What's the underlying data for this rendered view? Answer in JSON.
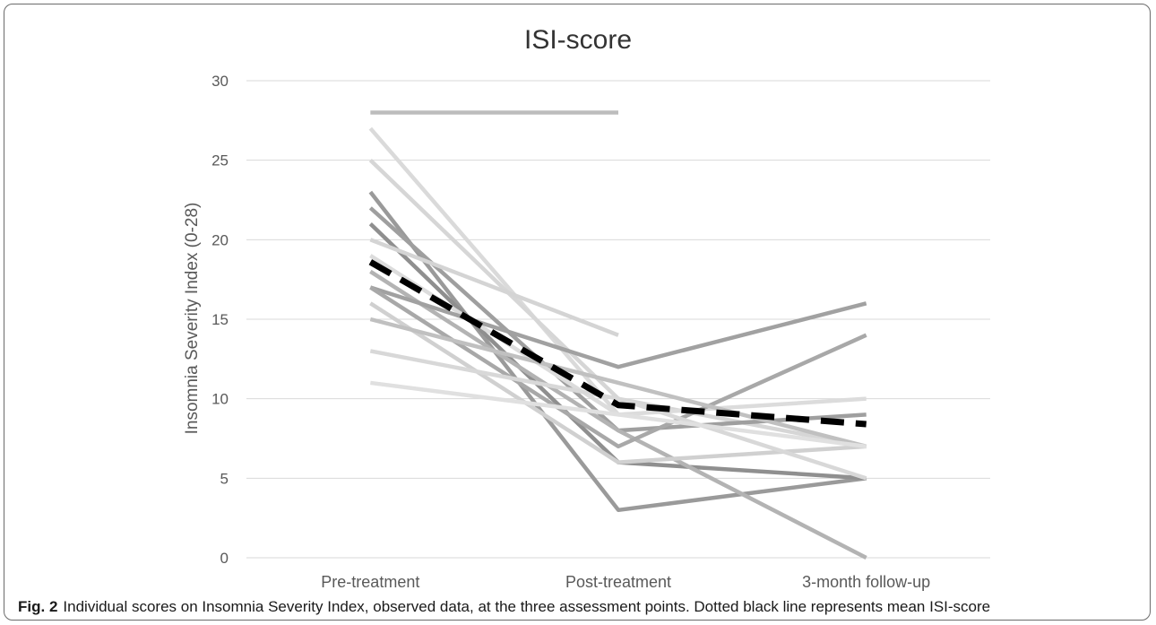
{
  "caption": {
    "label": "Fig. 2",
    "text": "Individual scores on Insomnia Severity Index, observed data, at the three assessment points. Dotted black line represents mean ISI-score"
  },
  "chart_data": {
    "type": "line",
    "title": "ISI-score",
    "xlabel": "",
    "ylabel": "Insomnia Severity  Index (0-28)",
    "categories": [
      "Pre-treatment",
      "Post-treatment",
      "3-month follow-up"
    ],
    "ylim": [
      0,
      30
    ],
    "yticks": [
      0,
      5,
      10,
      15,
      20,
      25,
      30
    ],
    "grid": true,
    "legend": "none",
    "series": [
      {
        "values": [
          28,
          28,
          null
        ],
        "color": "#bdbdbd"
      },
      {
        "values": [
          27,
          9,
          null
        ],
        "color": "#dadada"
      },
      {
        "values": [
          25,
          10,
          7
        ],
        "color": "#d6d6d6"
      },
      {
        "values": [
          23,
          3,
          5
        ],
        "color": "#9a9a9a"
      },
      {
        "values": [
          22,
          8,
          9
        ],
        "color": "#9f9f9f"
      },
      {
        "values": [
          21,
          6,
          5
        ],
        "color": "#8f8f8f"
      },
      {
        "values": [
          20,
          14,
          null
        ],
        "color": "#d4d4d4"
      },
      {
        "values": [
          19,
          9,
          10
        ],
        "color": "#dcdcdc"
      },
      {
        "values": [
          18,
          8,
          0
        ],
        "color": "#b3b3b3"
      },
      {
        "values": [
          17,
          12,
          16
        ],
        "color": "#a1a1a1"
      },
      {
        "values": [
          17,
          7,
          14
        ],
        "color": "#a8a8a8"
      },
      {
        "values": [
          16,
          6,
          7
        ],
        "color": "#d0d0d0"
      },
      {
        "values": [
          15,
          11,
          7
        ],
        "color": "#c0c0c0"
      },
      {
        "values": [
          13,
          10,
          5
        ],
        "color": "#d8d8d8"
      },
      {
        "values": [
          11,
          9,
          7
        ],
        "color": "#e0e0e0"
      }
    ],
    "mean": {
      "values": [
        18.6,
        9.6,
        8.4
      ],
      "color": "#000000",
      "style": "dashed"
    }
  }
}
